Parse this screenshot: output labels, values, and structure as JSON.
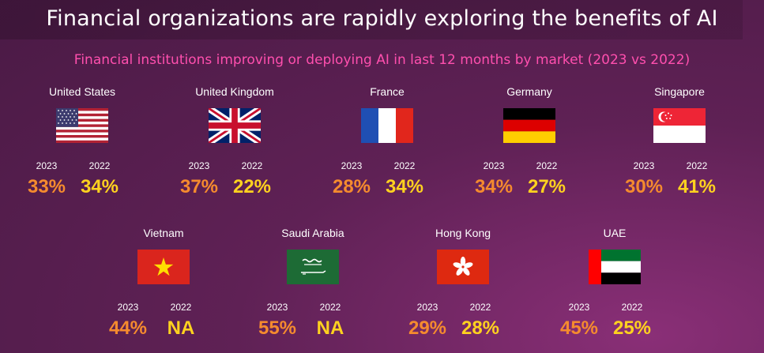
{
  "title": "Financial organizations are rapidly exploring the benefits of AI",
  "subtitle": "Financial institutions improving or deploying AI in last 12 months by market (2023 vs 2022)",
  "colors": {
    "value_2023": "#f58b2e",
    "value_2022": "#ffd21f"
  },
  "chart_data": {
    "type": "table",
    "title": "Financial organizations are rapidly exploring the benefits of AI",
    "subtitle": "Financial institutions improving or deploying AI in last 12 months by market (2023 vs 2022)",
    "columns": [
      "2023",
      "2022"
    ],
    "rows": [
      {
        "market": "United States",
        "flag": "us-flag-icon",
        "v2023": "33%",
        "v2022": "34%"
      },
      {
        "market": "United Kingdom",
        "flag": "uk-flag-icon",
        "v2023": "37%",
        "v2022": "22%"
      },
      {
        "market": "France",
        "flag": "france-flag-icon",
        "v2023": "28%",
        "v2022": "34%"
      },
      {
        "market": "Germany",
        "flag": "germany-flag-icon",
        "v2023": "34%",
        "v2022": "27%"
      },
      {
        "market": "Singapore",
        "flag": "singapore-flag-icon",
        "v2023": "30%",
        "v2022": "41%"
      },
      {
        "market": "Vietnam",
        "flag": "vietnam-flag-icon",
        "v2023": "44%",
        "v2022": "NA"
      },
      {
        "market": "Saudi Arabia",
        "flag": "saudi-flag-icon",
        "v2023": "55%",
        "v2022": "NA"
      },
      {
        "market": "Hong Kong",
        "flag": "hongkong-flag-icon",
        "v2023": "29%",
        "v2022": "28%"
      },
      {
        "market": "UAE",
        "flag": "uae-flag-icon",
        "v2023": "45%",
        "v2022": "25%"
      }
    ]
  }
}
